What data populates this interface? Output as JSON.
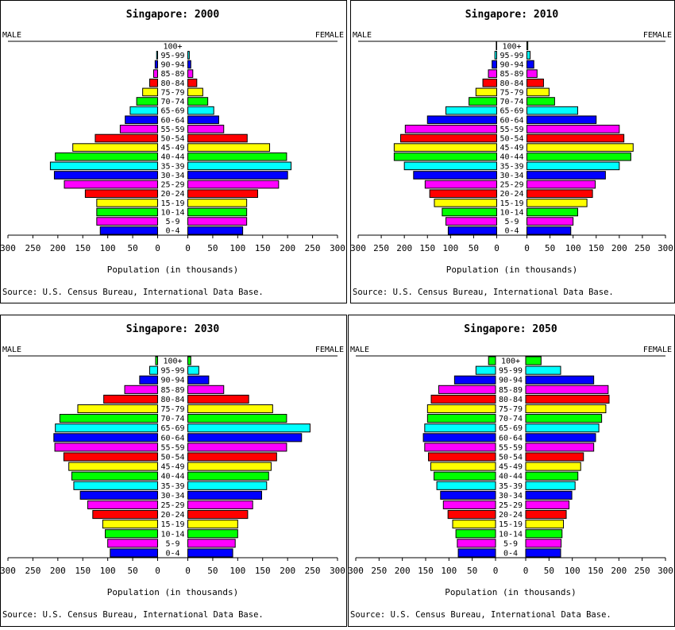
{
  "chart_data": [
    {
      "type": "bar",
      "title": "Singapore: 2000",
      "left_label": "MALE",
      "right_label": "FEMALE",
      "xlabel": "Population (in thousands)",
      "source": "Source: U.S. Census Bureau, International Data Base.",
      "xlim": [
        0,
        300
      ],
      "x_ticks": [
        "300",
        "250",
        "200",
        "150",
        "100",
        "50",
        "0",
        "0",
        "50",
        "100",
        "150",
        "200",
        "250",
        "300"
      ],
      "categories": [
        "0-4",
        "5-9",
        "10-14",
        "15-19",
        "20-24",
        "25-29",
        "30-34",
        "35-39",
        "40-44",
        "45-49",
        "50-54",
        "55-59",
        "60-64",
        "65-69",
        "70-74",
        "75-79",
        "80-84",
        "85-89",
        "90-94",
        "95-99",
        "100+"
      ],
      "series": [
        {
          "name": "MALE",
          "values": [
            115,
            122,
            122,
            122,
            145,
            187,
            207,
            215,
            205,
            170,
            125,
            75,
            65,
            55,
            42,
            30,
            16,
            8,
            5,
            2,
            0
          ]
        },
        {
          "name": "FEMALE",
          "values": [
            110,
            118,
            118,
            118,
            140,
            182,
            200,
            207,
            198,
            164,
            119,
            72,
            62,
            52,
            40,
            30,
            18,
            10,
            6,
            3,
            0
          ]
        }
      ]
    },
    {
      "type": "bar",
      "title": "Singapore: 2010",
      "left_label": "MALE",
      "right_label": "FEMALE",
      "xlabel": "Population (in thousands)",
      "source": "Source: U.S. Census Bureau, International Data Base.",
      "xlim": [
        0,
        300
      ],
      "x_ticks": [
        "300",
        "250",
        "200",
        "150",
        "100",
        "50",
        "0",
        "0",
        "50",
        "100",
        "150",
        "200",
        "250",
        "300"
      ],
      "categories": [
        "0-4",
        "5-9",
        "10-14",
        "15-19",
        "20-24",
        "25-29",
        "30-34",
        "35-39",
        "40-44",
        "45-49",
        "50-54",
        "55-59",
        "60-64",
        "65-69",
        "70-74",
        "75-79",
        "80-84",
        "85-89",
        "90-94",
        "95-99",
        "100+"
      ],
      "series": [
        {
          "name": "MALE",
          "values": [
            105,
            110,
            118,
            135,
            145,
            155,
            180,
            200,
            222,
            222,
            208,
            198,
            150,
            110,
            60,
            45,
            30,
            18,
            10,
            4,
            1
          ]
        },
        {
          "name": "FEMALE",
          "values": [
            95,
            100,
            110,
            130,
            142,
            148,
            170,
            200,
            225,
            230,
            210,
            200,
            150,
            110,
            60,
            48,
            36,
            22,
            15,
            7,
            2
          ]
        }
      ]
    },
    {
      "type": "bar",
      "title": "Singapore: 2030",
      "left_label": "MALE",
      "right_label": "FEMALE",
      "xlabel": "Population (in thousands)",
      "source": "Source: U.S. Census Bureau, International Data Base.",
      "xlim": [
        0,
        300
      ],
      "x_ticks": [
        "300",
        "250",
        "200",
        "150",
        "100",
        "50",
        "0",
        "0",
        "50",
        "100",
        "150",
        "200",
        "250",
        "300"
      ],
      "categories": [
        "0-4",
        "5-9",
        "10-14",
        "15-19",
        "20-24",
        "25-29",
        "30-34",
        "35-39",
        "40-44",
        "45-49",
        "50-54",
        "55-59",
        "60-64",
        "65-69",
        "70-74",
        "75-79",
        "80-84",
        "85-89",
        "90-94",
        "95-99",
        "100+"
      ],
      "series": [
        {
          "name": "MALE",
          "values": [
            95,
            100,
            105,
            110,
            130,
            140,
            155,
            168,
            172,
            178,
            188,
            206,
            208,
            205,
            196,
            160,
            108,
            66,
            36,
            16,
            4
          ]
        },
        {
          "name": "FEMALE",
          "values": [
            90,
            95,
            100,
            100,
            120,
            130,
            148,
            158,
            162,
            167,
            178,
            198,
            228,
            245,
            198,
            170,
            122,
            72,
            42,
            22,
            6
          ]
        }
      ]
    },
    {
      "type": "bar",
      "title": "Singapore: 2050",
      "left_label": "MALE",
      "right_label": "FEMALE",
      "xlabel": "Population (in thousands)",
      "source": "Source: U.S. Census Bureau, International Data Base.",
      "xlim": [
        0,
        300
      ],
      "x_ticks": [
        "300",
        "250",
        "200",
        "150",
        "100",
        "50",
        "0",
        "0",
        "50",
        "100",
        "150",
        "200",
        "250",
        "300"
      ],
      "categories": [
        "0-4",
        "5-9",
        "10-14",
        "15-19",
        "20-24",
        "25-29",
        "30-34",
        "35-39",
        "40-44",
        "45-49",
        "50-54",
        "55-59",
        "60-64",
        "65-69",
        "70-74",
        "75-79",
        "80-84",
        "85-89",
        "90-94",
        "95-99",
        "100+"
      ],
      "series": [
        {
          "name": "MALE",
          "values": [
            80,
            82,
            85,
            92,
            102,
            112,
            118,
            126,
            132,
            139,
            144,
            152,
            155,
            152,
            146,
            146,
            138,
            122,
            88,
            42,
            15
          ]
        },
        {
          "name": "FEMALE",
          "values": [
            75,
            76,
            78,
            81,
            87,
            93,
            99,
            106,
            112,
            118,
            124,
            146,
            150,
            157,
            163,
            172,
            179,
            177,
            146,
            75,
            33
          ]
        }
      ]
    }
  ],
  "colors": {
    "bars": [
      "#0000ff",
      "#ff00ff",
      "#00ff00",
      "#ffff00",
      "#ff0000",
      "#ff00ff",
      "#0000ff",
      "#00ffff",
      "#00ff00",
      "#ffff00",
      "#ff0000",
      "#ff00ff",
      "#0000ff",
      "#00ffff",
      "#00ff00",
      "#ffff00",
      "#ff0000",
      "#ff00ff",
      "#0000ff",
      "#00ffff",
      "#00ff00"
    ],
    "outline": "#000000",
    "background": "#ffffff"
  }
}
